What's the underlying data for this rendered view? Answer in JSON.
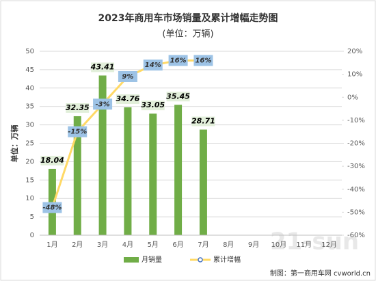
{
  "chart_data": {
    "type": "bar+line",
    "title": "2023年商用车市场销量及累计增幅走势图",
    "subtitle": "(单位：万辆)",
    "y_label": "单位：万辆",
    "footer": "制图：第一商用车网 cvworld.cn",
    "watermark": "21-sun",
    "categories": [
      "1月",
      "2月",
      "3月",
      "4月",
      "5月",
      "6月",
      "7月",
      "8月",
      "9月",
      "10月",
      "11月",
      "12月"
    ],
    "series": [
      {
        "name": "月销量",
        "type": "bar",
        "color": "#70ad47",
        "values": [
          18.04,
          32.35,
          43.41,
          34.76,
          33.05,
          35.45,
          28.71,
          null,
          null,
          null,
          null,
          null
        ]
      },
      {
        "name": "累计增幅",
        "type": "line",
        "axis": "y2",
        "color": "#ffd966",
        "marker_color": "#4472c4",
        "values": [
          -48,
          -15,
          -3,
          9,
          14,
          16,
          16,
          null,
          null,
          null,
          null,
          null
        ],
        "value_labels": [
          "-48%",
          "-15%",
          "-3%",
          "9%",
          "14%",
          "16%",
          "16%",
          null,
          null,
          null,
          null,
          null
        ]
      }
    ],
    "ylim": [
      0,
      50
    ],
    "yticks": [
      0,
      5,
      10,
      15,
      20,
      25,
      30,
      35,
      40,
      45,
      50
    ],
    "y2lim": [
      -60,
      20
    ],
    "y2ticks": [
      {
        "value": -60,
        "label": "-60%"
      },
      {
        "value": -50,
        "label": "-50%"
      },
      {
        "value": -40,
        "label": "-40%"
      },
      {
        "value": -30,
        "label": "-30%"
      },
      {
        "value": -20,
        "label": "-20%"
      },
      {
        "value": -10,
        "label": "-10%"
      },
      {
        "value": 0,
        "label": "0%"
      },
      {
        "value": 10,
        "label": "10%"
      },
      {
        "value": 20,
        "label": "20%"
      }
    ],
    "grid": true,
    "legend": "bottom"
  }
}
